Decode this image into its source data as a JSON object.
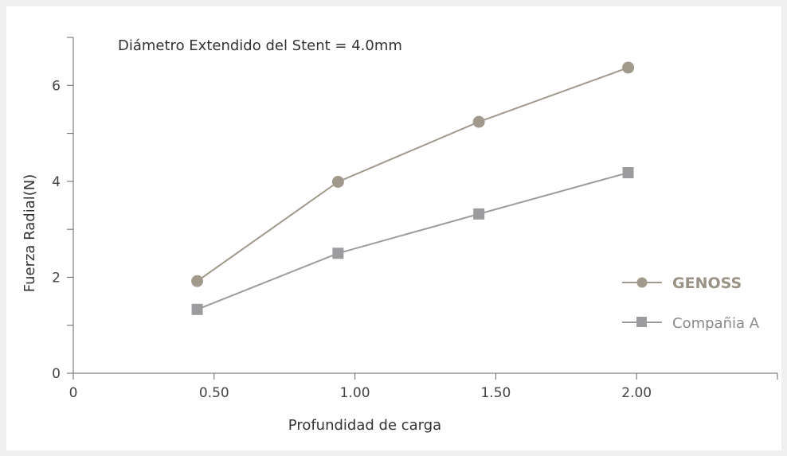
{
  "chart_data": {
    "type": "line",
    "annotation": "Diámetro Extendido del Stent  = 4.0mm",
    "xlabel": "Profundidad de carga",
    "ylabel": "Fuerza Radial(N)",
    "xlim": [
      0,
      2.5
    ],
    "ylim": [
      0,
      7
    ],
    "x_ticks": [
      0,
      0.5,
      1.0,
      1.5,
      2.0
    ],
    "x_tick_labels": [
      "0",
      "0.50",
      "1.00",
      "1.50",
      "2.00"
    ],
    "y_ticks": [
      0,
      2,
      4,
      6
    ],
    "y_tick_labels": [
      "0",
      "2",
      "4",
      "6"
    ],
    "y_minor_ticks": [
      1,
      3,
      5,
      7
    ],
    "grid": false,
    "legend_position": "right",
    "series": [
      {
        "name": "GENOSS",
        "marker": "circle",
        "color": "#a19a8c",
        "points": [
          [
            0.44,
            1.92
          ],
          [
            0.94,
            3.99
          ],
          [
            1.44,
            5.24
          ],
          [
            1.97,
            6.37
          ]
        ]
      },
      {
        "name": "Compañia A",
        "marker": "square",
        "color": "#9c9c9e",
        "points": [
          [
            0.44,
            1.33
          ],
          [
            0.94,
            2.5
          ],
          [
            1.44,
            3.32
          ],
          [
            1.97,
            4.18
          ]
        ]
      }
    ]
  }
}
